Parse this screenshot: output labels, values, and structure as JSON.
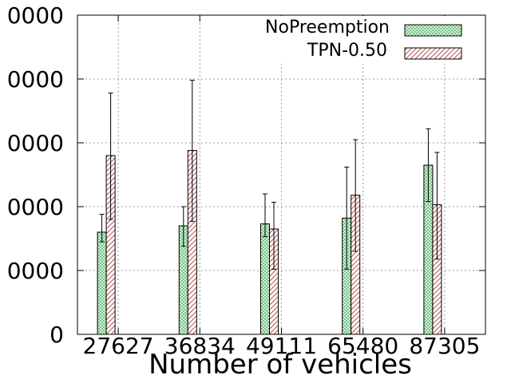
{
  "chart_data": {
    "type": "bar",
    "xlabel": "Number of vehicles",
    "ylabel": "",
    "ylim": [
      0,
      500000
    ],
    "grid": true,
    "legend_position": "top-right",
    "y_tick_labels": [
      "0",
      "0000",
      "0000",
      "0000",
      "0000",
      "0000"
    ],
    "y_tick_values": [
      0,
      100000,
      200000,
      300000,
      400000,
      500000
    ],
    "categories": [
      "27627",
      "36834",
      "49111",
      "65480",
      "87305"
    ],
    "series": [
      {
        "name": "NoPreemption",
        "pattern": "crosshatch",
        "fill_color": "#d9f7d9",
        "stroke_color": "#2e8b57",
        "values": [
          160000,
          170000,
          173000,
          182000,
          265000
        ],
        "err_low": [
          145000,
          138000,
          153000,
          102000,
          208000
        ],
        "err_high": [
          188000,
          200000,
          220000,
          262000,
          322000
        ]
      },
      {
        "name": "TPN-0.50",
        "pattern": "diagonal",
        "fill_color": "#ffffff",
        "stroke_color": "#b03a3a",
        "values": [
          280000,
          288000,
          165000,
          218000,
          203000
        ],
        "err_low": [
          180000,
          177000,
          102000,
          130000,
          118000
        ],
        "err_high": [
          378000,
          398000,
          207000,
          305000,
          285000
        ]
      }
    ]
  }
}
